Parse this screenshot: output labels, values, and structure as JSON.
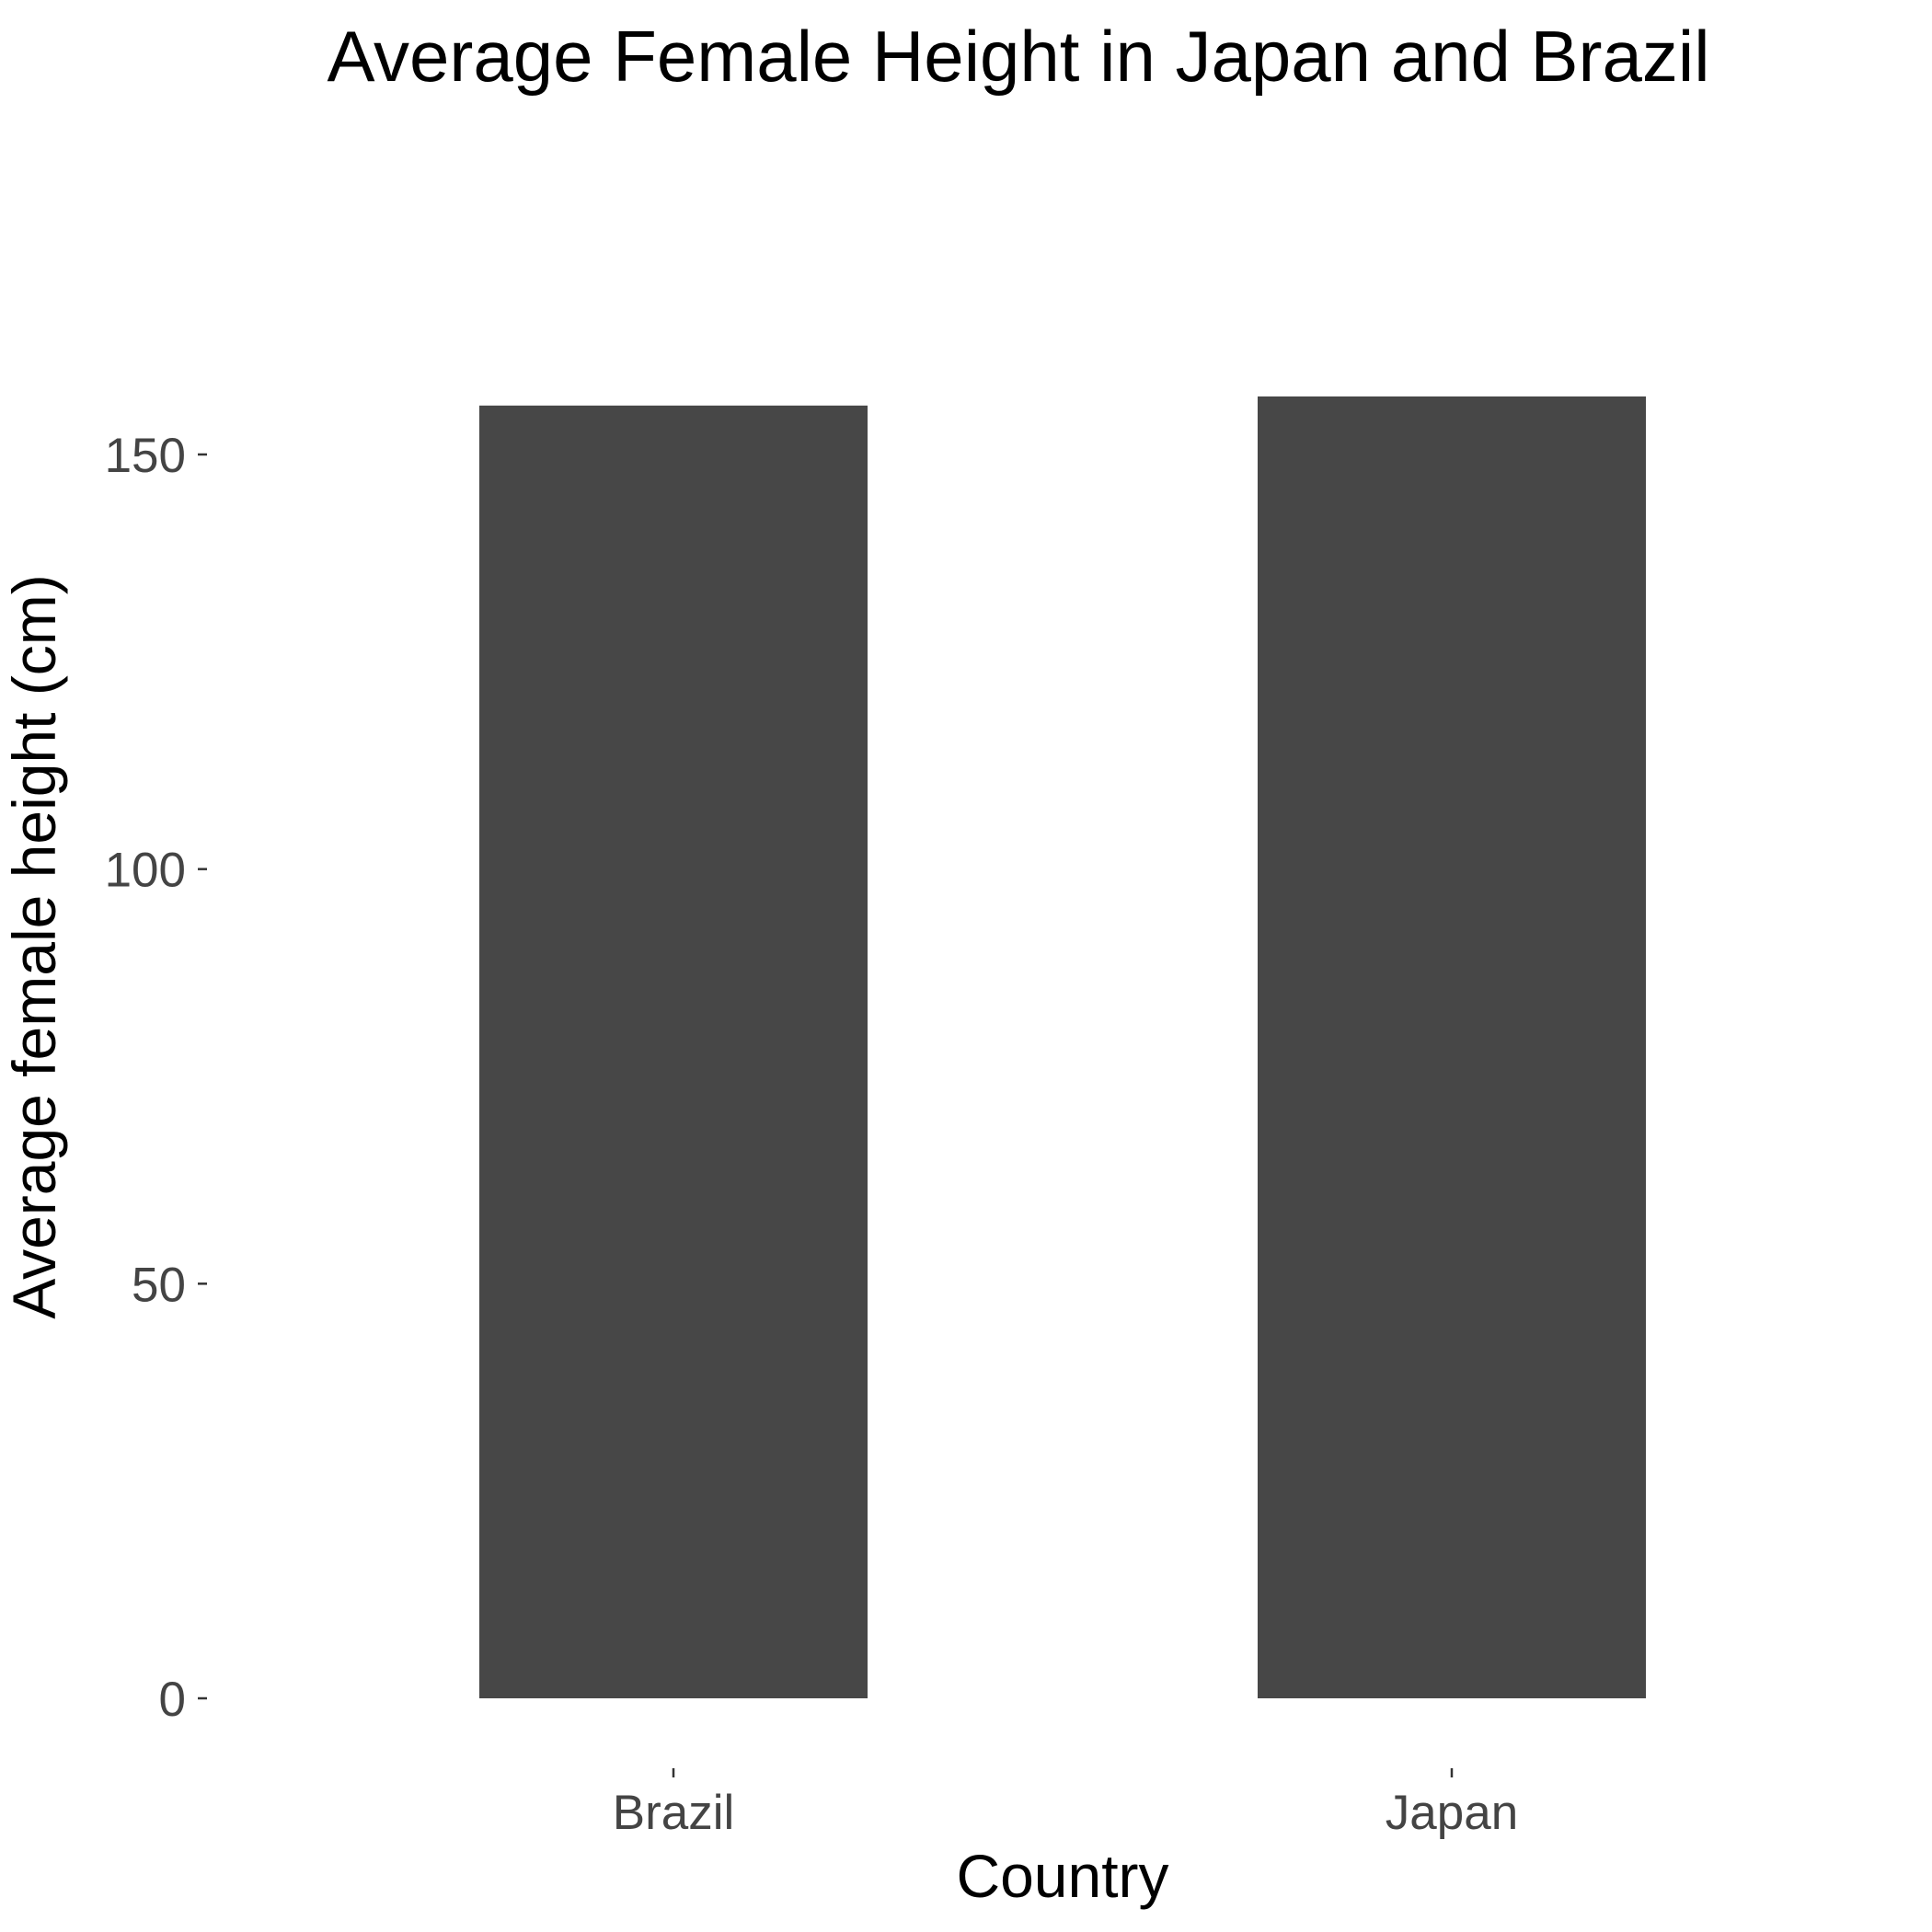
{
  "chart_data": {
    "type": "bar",
    "title": "Average Female Height in Japan and Brazil",
    "xlabel": "Country",
    "ylabel": "Average female height (cm)",
    "categories": [
      "Brazil",
      "Japan"
    ],
    "values": [
      155.9,
      157.0
    ],
    "ylim": [
      0,
      160
    ],
    "yticks": [
      0,
      50,
      100,
      150
    ],
    "grid": false,
    "colors": {
      "bar": "#474747",
      "tick_label": "#444444",
      "text": "#000000"
    }
  }
}
